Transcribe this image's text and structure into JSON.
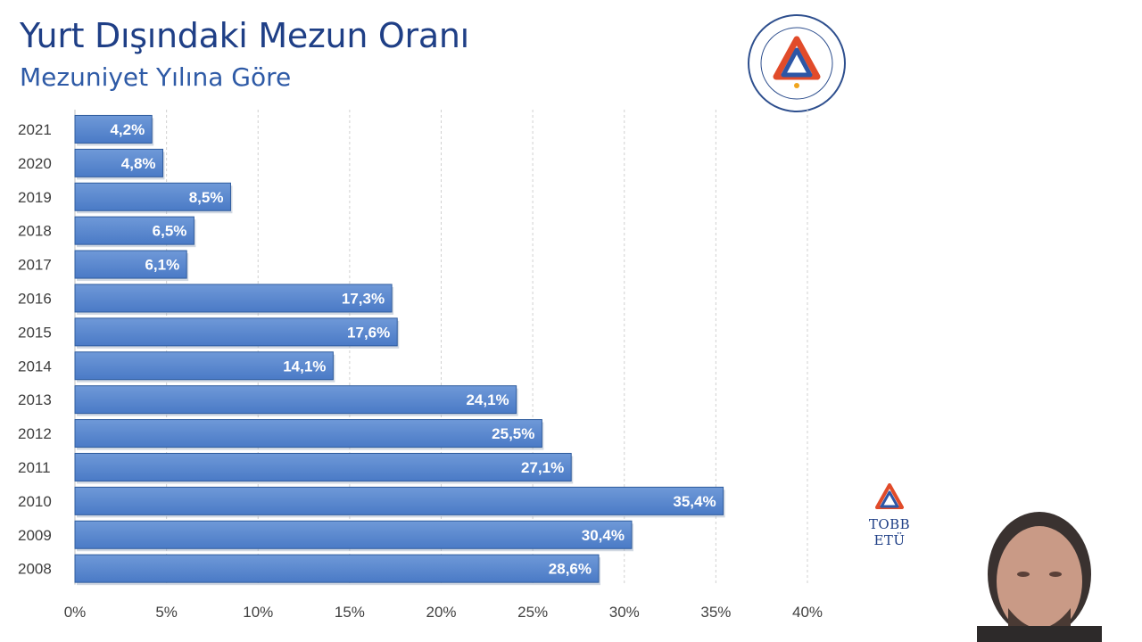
{
  "header": {
    "title": "Yurt Dışındaki Mezun Oranı",
    "subtitle": "Mezuniyet Yılına Göre"
  },
  "logo": {
    "icon": "tobb-etu-seal-icon",
    "text": "TOBB ETÜ"
  },
  "colors": {
    "title": "#1f3f86",
    "subtitle": "#2e5aa6",
    "bar_fill": "#4a7ac6",
    "bar_stroke": "#2f5c9e",
    "grid": "#d0d0d0",
    "label": "#404040"
  },
  "chart_data": {
    "type": "bar",
    "orientation": "horizontal",
    "categories": [
      "2021",
      "2020",
      "2019",
      "2018",
      "2017",
      "2016",
      "2015",
      "2014",
      "2013",
      "2012",
      "2011",
      "2010",
      "2009",
      "2008"
    ],
    "values": [
      4.2,
      4.8,
      8.5,
      6.5,
      6.1,
      17.3,
      17.6,
      14.1,
      24.1,
      25.5,
      27.1,
      35.4,
      30.4,
      28.6
    ],
    "data_labels": [
      "4,2%",
      "4,8%",
      "8,5%",
      "6,5%",
      "6,1%",
      "17,3%",
      "17,6%",
      "14,1%",
      "24,1%",
      "25,5%",
      "27,1%",
      "35,4%",
      "30,4%",
      "28,6%"
    ],
    "x_ticks": [
      "0%",
      "5%",
      "10%",
      "15%",
      "20%",
      "25%",
      "30%",
      "35%",
      "40%"
    ],
    "xlim": [
      0,
      40
    ],
    "grid": "vertical dashed",
    "legend": "none"
  },
  "webcam": {
    "logo_text": "TOBB ETÜ"
  }
}
